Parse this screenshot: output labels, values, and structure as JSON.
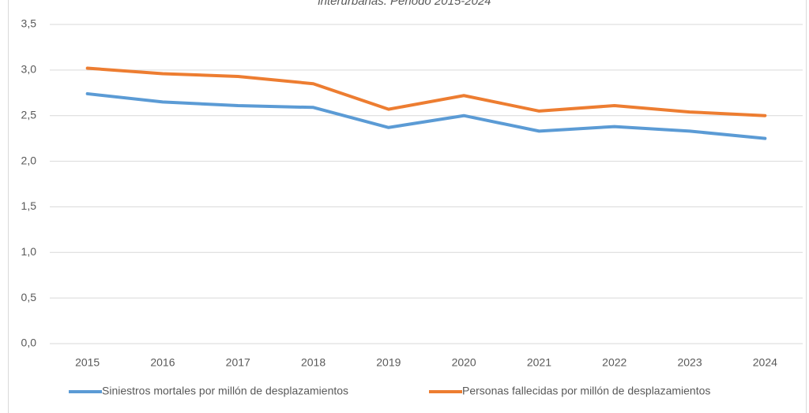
{
  "chart_data": {
    "type": "line",
    "title": "interurbanas. Periodo 2015-2024",
    "categories": [
      "2015",
      "2016",
      "2017",
      "2018",
      "2019",
      "2020",
      "2021",
      "2022",
      "2023",
      "2024"
    ],
    "series": [
      {
        "name": "Siniestros mortales por millón de desplazamientos",
        "color": "#5b9bd5",
        "values": [
          2.74,
          2.65,
          2.61,
          2.59,
          2.37,
          2.5,
          2.33,
          2.38,
          2.33,
          2.25
        ]
      },
      {
        "name": "Personas fallecidas por millón de desplazamientos",
        "color": "#ed7d31",
        "values": [
          3.02,
          2.96,
          2.93,
          2.85,
          2.57,
          2.72,
          2.55,
          2.61,
          2.54,
          2.5
        ]
      }
    ],
    "ylim": [
      0,
      3.5
    ],
    "yticks": [
      {
        "value": 0,
        "label": "0,0"
      },
      {
        "value": 0.5,
        "label": "0,5"
      },
      {
        "value": 1,
        "label": "1,0"
      },
      {
        "value": 1.5,
        "label": "1,5"
      },
      {
        "value": 2,
        "label": "2,0"
      },
      {
        "value": 2.5,
        "label": "2,5"
      },
      {
        "value": 3,
        "label": "3,0"
      },
      {
        "value": 3.5,
        "label": "3,5"
      }
    ],
    "grid": true,
    "legend": "bottom"
  }
}
